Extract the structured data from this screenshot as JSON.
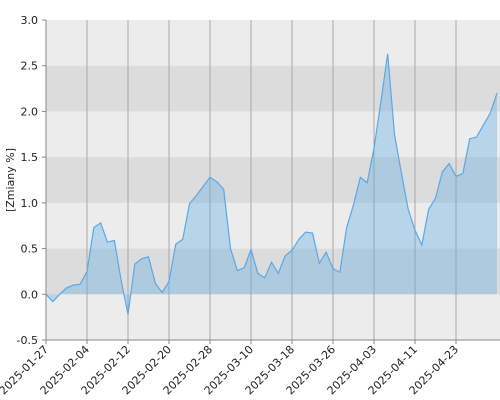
{
  "chart_data": {
    "type": "area",
    "y_label": "[Zmiany %]",
    "categories": [
      "2025-01-27",
      null,
      null,
      null,
      null,
      null,
      "2025-02-04",
      null,
      null,
      null,
      null,
      null,
      "2025-02-12",
      null,
      null,
      null,
      null,
      null,
      "2025-02-20",
      null,
      null,
      null,
      null,
      null,
      "2025-02-28",
      null,
      null,
      null,
      null,
      null,
      "2025-03-10",
      null,
      null,
      null,
      null,
      null,
      "2025-03-18",
      null,
      null,
      null,
      null,
      null,
      "2025-03-26",
      null,
      null,
      null,
      null,
      null,
      "2025-04-03",
      null,
      null,
      null,
      null,
      null,
      "2025-04-11",
      null,
      null,
      null,
      null,
      null,
      "2025-04-23",
      null,
      null,
      null,
      null,
      null,
      null
    ],
    "values": [
      0.0,
      -0.08,
      0.0,
      0.07,
      0.1,
      0.11,
      0.25,
      0.73,
      0.78,
      0.57,
      0.59,
      0.15,
      -0.22,
      0.33,
      0.39,
      0.41,
      0.12,
      0.02,
      0.14,
      0.55,
      0.6,
      0.99,
      1.08,
      1.18,
      1.28,
      1.23,
      1.15,
      0.5,
      0.26,
      0.29,
      0.49,
      0.23,
      0.18,
      0.35,
      0.23,
      0.42,
      0.48,
      0.6,
      0.68,
      0.67,
      0.34,
      0.46,
      0.28,
      0.24,
      0.73,
      0.98,
      1.28,
      1.22,
      1.6,
      2.1,
      2.63,
      1.75,
      1.33,
      0.93,
      0.7,
      0.54,
      0.93,
      1.05,
      1.34,
      1.43,
      1.29,
      1.32,
      1.7,
      1.72,
      1.85,
      1.98,
      2.2
    ],
    "color": "#5aa8e6",
    "ylim": [
      -0.5,
      3.0
    ],
    "yticks": [
      -0.5,
      {
        "value": 0,
        "label": "0.0"
      },
      0.5,
      {
        "value": 1,
        "label": "1.0"
      },
      1.5,
      {
        "value": 2,
        "label": "2.0"
      },
      2.5,
      {
        "value": 3,
        "label": "3.0"
      }
    ],
    "grid": true
  }
}
